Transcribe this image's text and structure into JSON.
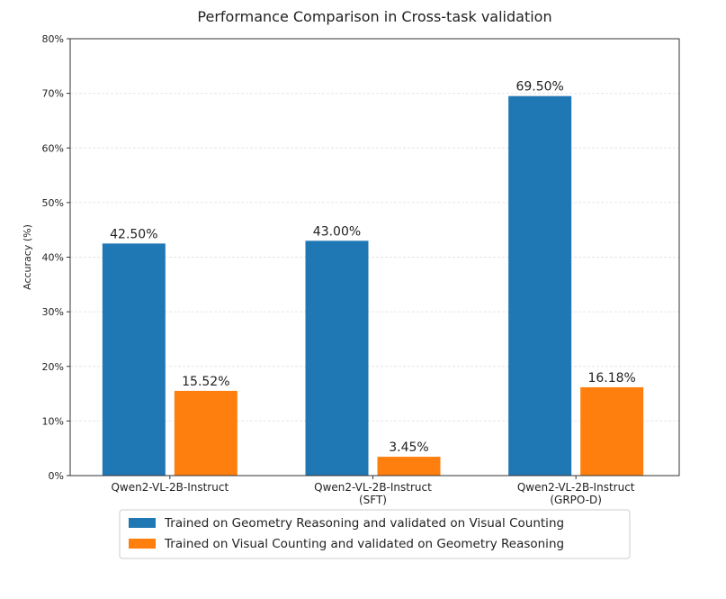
{
  "chart_data": {
    "type": "bar",
    "title": "Performance Comparison in Cross-task validation",
    "ylabel": "Accuracy (%)",
    "xlabel": "",
    "ylim": [
      0,
      80
    ],
    "yticks": [
      0,
      10,
      20,
      30,
      40,
      50,
      60,
      70,
      80
    ],
    "ytick_labels": [
      "0%",
      "10%",
      "20%",
      "30%",
      "40%",
      "50%",
      "60%",
      "70%",
      "80%"
    ],
    "categories": [
      [
        "Qwen2-VL-2B-Instruct"
      ],
      [
        "Qwen2-VL-2B-Instruct",
        "(SFT)"
      ],
      [
        "Qwen2-VL-2B-Instruct",
        "(GRPO-D)"
      ]
    ],
    "series": [
      {
        "name": "Trained on Geometry Reasoning and validated on Visual Counting",
        "color": "#1f77b4",
        "values": [
          42.5,
          43.0,
          69.5
        ],
        "labels": [
          "42.50%",
          "43.00%",
          "69.50%"
        ]
      },
      {
        "name": "Trained on Visual Counting and validated on Geometry Reasoning",
        "color": "#ff7f0e",
        "values": [
          15.52,
          3.45,
          16.18
        ],
        "labels": [
          "15.52%",
          "3.45%",
          "16.18%"
        ]
      }
    ],
    "grid": "horizontal",
    "legend_position": "bottom"
  }
}
